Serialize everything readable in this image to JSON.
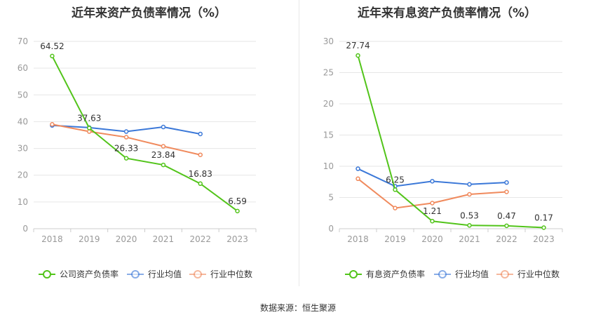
{
  "source_label": "数据来源：恒生聚源",
  "legend_common": [
    "行业均值",
    "行业中位数"
  ],
  "chart_data": [
    {
      "type": "line",
      "title": "近年来资产负债率情况（%）",
      "categories": [
        "2018",
        "2019",
        "2020",
        "2021",
        "2022",
        "2023"
      ],
      "ylim": [
        0,
        70
      ],
      "yticks": [
        0,
        10,
        20,
        30,
        40,
        50,
        60,
        70
      ],
      "grid": true,
      "legend_position": "bottom",
      "series": [
        {
          "name": "公司资产负债率",
          "color": "#52c41a",
          "values": [
            64.52,
            37.63,
            26.33,
            23.84,
            16.83,
            6.59
          ],
          "labels": [
            "64.52",
            "37.63",
            "26.33",
            "23.84",
            "16.83",
            "6.59"
          ]
        },
        {
          "name": "行业均值",
          "color": "#3b78d8",
          "values": [
            38.6,
            37.8,
            36.3,
            38.0,
            35.4,
            null
          ]
        },
        {
          "name": "行业中位数",
          "color": "#f08a5d",
          "values": [
            39.0,
            36.3,
            34.2,
            30.8,
            27.6,
            null
          ]
        }
      ]
    },
    {
      "type": "line",
      "title": "近年来有息资产负债率情况（%）",
      "categories": [
        "2018",
        "2019",
        "2020",
        "2021",
        "2022",
        "2023"
      ],
      "ylim": [
        0,
        30
      ],
      "yticks": [
        0,
        5,
        10,
        15,
        20,
        25,
        30
      ],
      "grid": true,
      "legend_position": "bottom",
      "series": [
        {
          "name": "有息资产负债率",
          "color": "#52c41a",
          "values": [
            27.74,
            6.25,
            1.21,
            0.53,
            0.47,
            0.17
          ],
          "labels": [
            "27.74",
            "6.25",
            "1.21",
            "0.53",
            "0.47",
            "0.17"
          ]
        },
        {
          "name": "行业均值",
          "color": "#3b78d8",
          "values": [
            9.6,
            6.8,
            7.6,
            7.1,
            7.4,
            null
          ]
        },
        {
          "name": "行业中位数",
          "color": "#f08a5d",
          "values": [
            8.0,
            3.3,
            4.1,
            5.5,
            5.9,
            null
          ]
        }
      ]
    }
  ]
}
